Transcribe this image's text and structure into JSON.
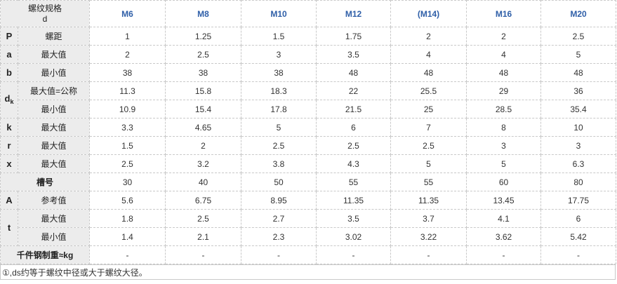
{
  "header": {
    "label_line1": "螺纹规格",
    "label_line2": "d",
    "sizes": [
      "M6",
      "M8",
      "M10",
      "M12",
      "(M14)",
      "M16",
      "M20"
    ]
  },
  "rows": [
    {
      "symbol": "P",
      "label": "螺距",
      "values": [
        "1",
        "1.25",
        "1.5",
        "1.75",
        "2",
        "2",
        "2.5"
      ]
    },
    {
      "symbol": "a",
      "label": "最大值",
      "values": [
        "2",
        "2.5",
        "3",
        "3.5",
        "4",
        "4",
        "5"
      ]
    },
    {
      "symbol": "b",
      "label": "最小值",
      "values": [
        "38",
        "38",
        "38",
        "48",
        "48",
        "48",
        "48"
      ]
    },
    {
      "symbol": "d",
      "symbol_sub": "k",
      "label": "最大值=公称",
      "values": [
        "11.3",
        "15.8",
        "18.3",
        "22",
        "25.5",
        "29",
        "36"
      ]
    },
    {
      "label": "最小值",
      "values": [
        "10.9",
        "15.4",
        "17.8",
        "21.5",
        "25",
        "28.5",
        "35.4"
      ]
    },
    {
      "symbol": "k",
      "label": "最大值",
      "values": [
        "3.3",
        "4.65",
        "5",
        "6",
        "7",
        "8",
        "10"
      ]
    },
    {
      "symbol": "r",
      "label": "最大值",
      "values": [
        "1.5",
        "2",
        "2.5",
        "2.5",
        "2.5",
        "3",
        "3"
      ]
    },
    {
      "symbol": "x",
      "label": "最大值",
      "values": [
        "2.5",
        "3.2",
        "3.8",
        "4.3",
        "5",
        "5",
        "6.3"
      ]
    },
    {
      "label": "槽号",
      "values": [
        "30",
        "40",
        "50",
        "55",
        "55",
        "60",
        "80"
      ]
    },
    {
      "symbol": "A",
      "label": "参考值",
      "values": [
        "5.6",
        "6.75",
        "8.95",
        "11.35",
        "11.35",
        "13.45",
        "17.75"
      ]
    },
    {
      "symbol": "t",
      "label": "最大值",
      "values": [
        "1.8",
        "2.5",
        "2.7",
        "3.5",
        "3.7",
        "4.1",
        "6"
      ]
    },
    {
      "label": "最小值",
      "values": [
        "1.4",
        "2.1",
        "2.3",
        "3.02",
        "3.22",
        "3.62",
        "5.42"
      ]
    },
    {
      "label": "千件钢制重≈kg",
      "values": [
        "-",
        "-",
        "-",
        "-",
        "-",
        "-",
        "-"
      ]
    }
  ],
  "note": "①,ds约等于螺纹中径或大于螺纹大径。"
}
